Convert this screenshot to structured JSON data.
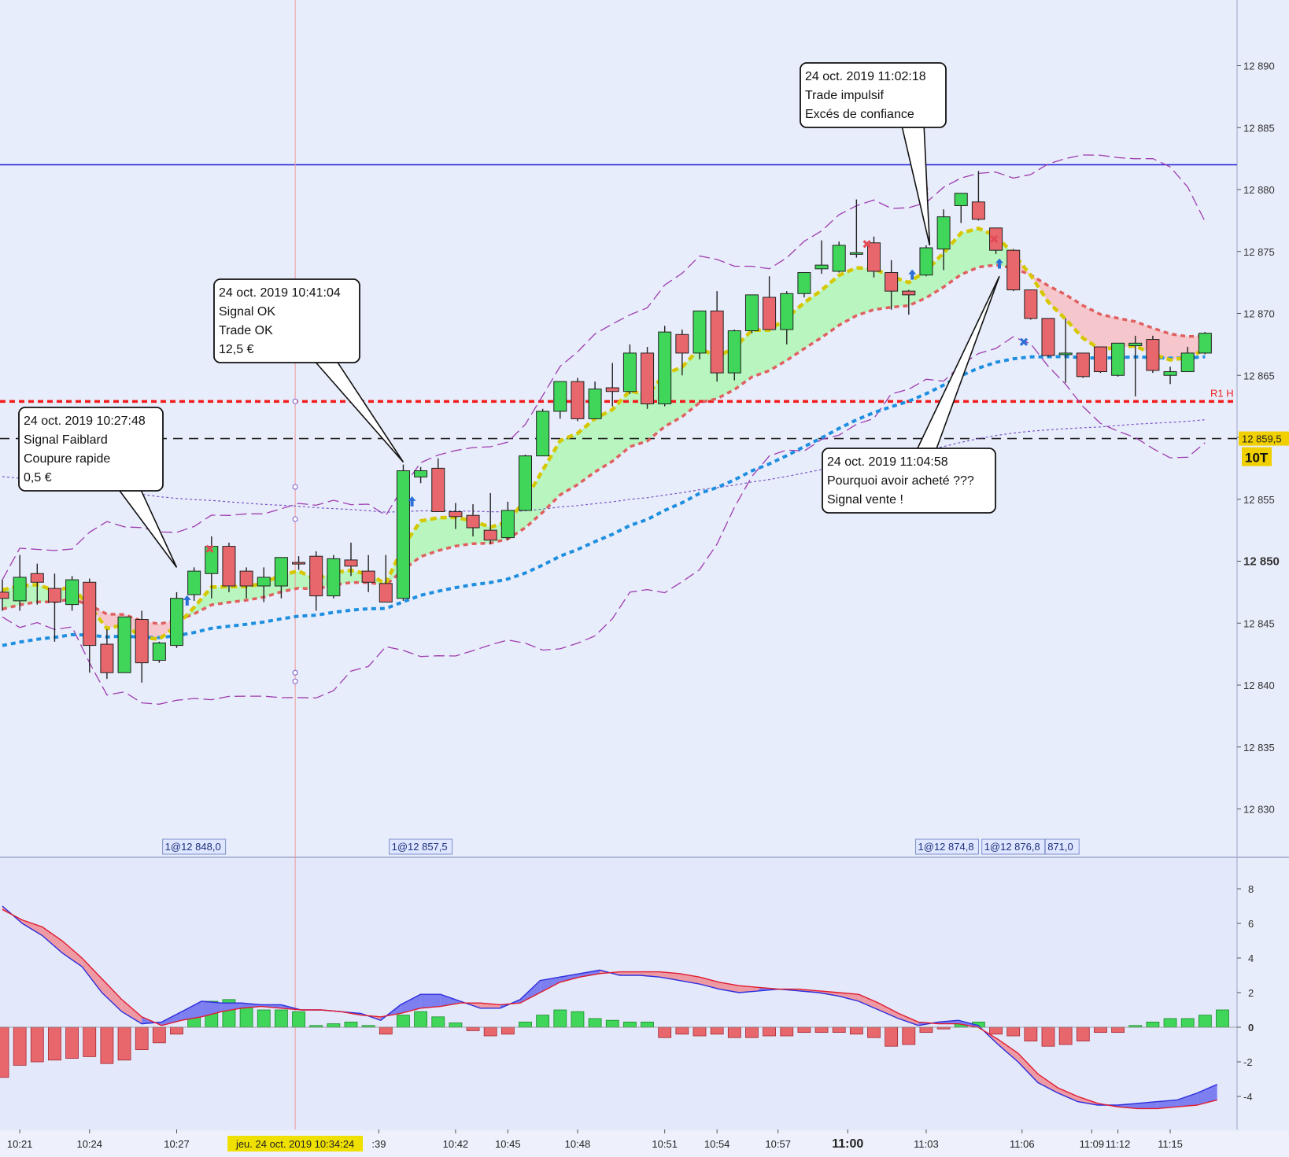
{
  "chart_data": [
    {
      "type": "candlestick",
      "title": "",
      "timeframe": "10T",
      "y_axis": {
        "ticks": [
          12830,
          12835,
          12840,
          12845,
          12850,
          12855,
          12860,
          12865,
          12870,
          12875,
          12880,
          12885,
          12890
        ],
        "tick_labels": [
          "12 830",
          "12 835",
          "12 840",
          "12 845",
          "12 850",
          "12 855",
          "12 860",
          "12 865",
          "12 870",
          "12 875",
          "12 880",
          "12 885",
          "12 890"
        ],
        "bold_tick": "12 850",
        "range": [
          12824,
          12895
        ]
      },
      "x_axis": {
        "labels": [
          {
            "text": "10:21",
            "bar": 1
          },
          {
            "text": "10:24",
            "bar": 5
          },
          {
            "text": "10:27",
            "bar": 10
          },
          {
            "text": ":39",
            "bar": 21.6
          },
          {
            "text": "10:42",
            "bar": 26
          },
          {
            "text": "10:45",
            "bar": 29
          },
          {
            "text": "10:48",
            "bar": 33
          },
          {
            "text": "10:51",
            "bar": 38
          },
          {
            "text": "10:54",
            "bar": 41
          },
          {
            "text": "10:57",
            "bar": 44.5
          },
          {
            "text": "11:00",
            "bar": 48.5,
            "bold": true
          },
          {
            "text": "11:03",
            "bar": 53
          },
          {
            "text": "11:06",
            "bar": 58.5
          },
          {
            "text": "11:09",
            "bar": 62.5
          },
          {
            "text": "11:12",
            "bar": 64
          },
          {
            "text": "11:15",
            "bar": 67
          }
        ],
        "cursor_label": "jeu. 24 oct. 2019 10:34:24"
      },
      "candles": [
        {
          "o": 12847.5,
          "h": 12848.5,
          "l": 12846.0,
          "c": 12847.0
        },
        {
          "o": 12846.8,
          "h": 12850.5,
          "l": 12846.0,
          "c": 12848.7
        },
        {
          "o": 12849.0,
          "h": 12849.8,
          "l": 12846.5,
          "c": 12848.3
        },
        {
          "o": 12847.8,
          "h": 12849.0,
          "l": 12843.5,
          "c": 12846.7
        },
        {
          "o": 12846.5,
          "h": 12848.8,
          "l": 12846.0,
          "c": 12848.5
        },
        {
          "o": 12848.3,
          "h": 12848.6,
          "l": 12841.0,
          "c": 12843.2
        },
        {
          "o": 12843.3,
          "h": 12844.5,
          "l": 12840.5,
          "c": 12841.0
        },
        {
          "o": 12841.0,
          "h": 12845.5,
          "l": 12841.0,
          "c": 12845.5
        },
        {
          "o": 12845.3,
          "h": 12846.0,
          "l": 12840.2,
          "c": 12841.8
        },
        {
          "o": 12842.0,
          "h": 12843.5,
          "l": 12841.8,
          "c": 12843.4
        },
        {
          "o": 12843.2,
          "h": 12847.5,
          "l": 12843.0,
          "c": 12847.0
        },
        {
          "o": 12847.3,
          "h": 12849.5,
          "l": 12846.8,
          "c": 12849.2
        },
        {
          "o": 12849.0,
          "h": 12852.0,
          "l": 12847.0,
          "c": 12851.2
        },
        {
          "o": 12851.2,
          "h": 12851.5,
          "l": 12847.5,
          "c": 12848.0
        },
        {
          "o": 12849.2,
          "h": 12849.5,
          "l": 12847.0,
          "c": 12848.0
        },
        {
          "o": 12848.0,
          "h": 12849.5,
          "l": 12846.7,
          "c": 12848.7
        },
        {
          "o": 12848.0,
          "h": 12850.2,
          "l": 12847.0,
          "c": 12850.3
        },
        {
          "o": 12849.9,
          "h": 12850.4,
          "l": 12849.3,
          "c": 12849.8
        },
        {
          "o": 12850.4,
          "h": 12850.8,
          "l": 12846.0,
          "c": 12847.2
        },
        {
          "o": 12847.2,
          "h": 12850.5,
          "l": 12847.0,
          "c": 12850.2
        },
        {
          "o": 12850.1,
          "h": 12851.5,
          "l": 12848.8,
          "c": 12849.6
        },
        {
          "o": 12849.2,
          "h": 12850.5,
          "l": 12847.5,
          "c": 12848.3
        },
        {
          "o": 12848.2,
          "h": 12850.5,
          "l": 12846.7,
          "c": 12846.7
        },
        {
          "o": 12847.0,
          "h": 12857.8,
          "l": 12846.8,
          "c": 12857.3
        },
        {
          "o": 12856.8,
          "h": 12857.6,
          "l": 12856.3,
          "c": 12857.3
        },
        {
          "o": 12857.5,
          "h": 12858.3,
          "l": 12854.0,
          "c": 12854.0
        },
        {
          "o": 12854.0,
          "h": 12854.7,
          "l": 12852.6,
          "c": 12853.6
        },
        {
          "o": 12853.7,
          "h": 12854.6,
          "l": 12852.0,
          "c": 12852.7
        },
        {
          "o": 12852.5,
          "h": 12855.5,
          "l": 12851.4,
          "c": 12851.7
        },
        {
          "o": 12851.9,
          "h": 12854.8,
          "l": 12851.7,
          "c": 12854.1
        },
        {
          "o": 12854.1,
          "h": 12858.6,
          "l": 12854.1,
          "c": 12858.5
        },
        {
          "o": 12858.5,
          "h": 12862.3,
          "l": 12858.5,
          "c": 12862.1
        },
        {
          "o": 12862.1,
          "h": 12864.5,
          "l": 12861.5,
          "c": 12864.5
        },
        {
          "o": 12864.5,
          "h": 12864.8,
          "l": 12861.3,
          "c": 12861.5
        },
        {
          "o": 12861.5,
          "h": 12864.5,
          "l": 12861.5,
          "c": 12863.9
        },
        {
          "o": 12864.0,
          "h": 12866.0,
          "l": 12862.5,
          "c": 12863.7
        },
        {
          "o": 12863.7,
          "h": 12867.5,
          "l": 12863.5,
          "c": 12866.8
        },
        {
          "o": 12866.8,
          "h": 12867.3,
          "l": 12862.3,
          "c": 12862.7
        },
        {
          "o": 12862.7,
          "h": 12869.0,
          "l": 12862.5,
          "c": 12868.5
        },
        {
          "o": 12868.3,
          "h": 12868.7,
          "l": 12865.0,
          "c": 12866.8
        },
        {
          "o": 12866.8,
          "h": 12870.2,
          "l": 12866.3,
          "c": 12870.2
        },
        {
          "o": 12870.2,
          "h": 12871.8,
          "l": 12864.5,
          "c": 12865.2
        },
        {
          "o": 12865.2,
          "h": 12868.7,
          "l": 12864.6,
          "c": 12868.6
        },
        {
          "o": 12868.6,
          "h": 12871.5,
          "l": 12868.4,
          "c": 12871.5
        },
        {
          "o": 12871.3,
          "h": 12873.0,
          "l": 12868.7,
          "c": 12868.7
        },
        {
          "o": 12868.7,
          "h": 12871.8,
          "l": 12867.5,
          "c": 12871.6
        },
        {
          "o": 12871.6,
          "h": 12873.3,
          "l": 12871.3,
          "c": 12873.3
        },
        {
          "o": 12873.6,
          "h": 12875.9,
          "l": 12873.2,
          "c": 12873.9
        },
        {
          "o": 12873.4,
          "h": 12875.8,
          "l": 12873.3,
          "c": 12875.5
        },
        {
          "o": 12874.9,
          "h": 12879.2,
          "l": 12874.5,
          "c": 12874.9
        },
        {
          "o": 12875.7,
          "h": 12876.2,
          "l": 12872.9,
          "c": 12873.4
        },
        {
          "o": 12873.3,
          "h": 12874.3,
          "l": 12870.3,
          "c": 12871.8
        },
        {
          "o": 12871.8,
          "h": 12871.9,
          "l": 12869.9,
          "c": 12871.5
        },
        {
          "o": 12873.1,
          "h": 12875.5,
          "l": 12873.0,
          "c": 12875.3
        },
        {
          "o": 12875.2,
          "h": 12878.4,
          "l": 12873.5,
          "c": 12877.8
        },
        {
          "o": 12878.7,
          "h": 12879.7,
          "l": 12877.3,
          "c": 12879.7
        },
        {
          "o": 12879.0,
          "h": 12881.5,
          "l": 12877.5,
          "c": 12877.6
        },
        {
          "o": 12876.9,
          "h": 12876.9,
          "l": 12874.8,
          "c": 12875.1
        },
        {
          "o": 12875.1,
          "h": 12875.2,
          "l": 12871.8,
          "c": 12871.9
        },
        {
          "o": 12871.9,
          "h": 12871.9,
          "l": 12869.5,
          "c": 12869.6
        },
        {
          "o": 12869.6,
          "h": 12869.6,
          "l": 12866.5,
          "c": 12866.6
        },
        {
          "o": 12866.7,
          "h": 12869.6,
          "l": 12864.4,
          "c": 12866.8
        },
        {
          "o": 12866.8,
          "h": 12866.8,
          "l": 12864.8,
          "c": 12864.9
        },
        {
          "o": 12867.3,
          "h": 12867.3,
          "l": 12865.2,
          "c": 12865.3
        },
        {
          "o": 12865.0,
          "h": 12867.6,
          "l": 12864.9,
          "c": 12867.6
        },
        {
          "o": 12867.4,
          "h": 12868.2,
          "l": 12863.3,
          "c": 12867.6
        },
        {
          "o": 12867.9,
          "h": 12868.2,
          "l": 12865.2,
          "c": 12865.4
        },
        {
          "o": 12865.0,
          "h": 12865.7,
          "l": 12864.3,
          "c": 12865.3
        },
        {
          "o": 12865.3,
          "h": 12867.3,
          "l": 12865.3,
          "c": 12866.8
        },
        {
          "o": 12866.8,
          "h": 12868.5,
          "l": 12866.7,
          "c": 12868.4
        }
      ],
      "horizontal_levels": [
        {
          "value": 12882.0,
          "style": "solid",
          "color": "#1d1dd6"
        },
        {
          "value": 12862.9,
          "style": "dotted",
          "color": "#f21c1c",
          "label": "R1 H"
        },
        {
          "value": 12859.9,
          "style": "dashed",
          "color": "#222222"
        }
      ],
      "last_price_label": "12 859,5",
      "annotations": [
        {
          "lines": [
            "24 oct. 2019 10:27:48",
            "Signal Faiblard",
            "Coupure rapide",
            "0,5 €"
          ],
          "target_bar": 10,
          "target_price": 12849.5
        },
        {
          "lines": [
            "24 oct. 2019 10:41:04",
            "Signal OK",
            "Trade OK",
            "12,5 €"
          ],
          "target_bar": 23,
          "target_price": 12858.0
        },
        {
          "lines": [
            "24 oct. 2019 11:02:18",
            "Trade impulsif",
            "Excés de confiance"
          ],
          "target_bar": 53.2,
          "target_price": 12875.5
        },
        {
          "lines": [
            "24 oct. 2019 11:04:58",
            "Pourquoi avoir acheté ???",
            "Signal vente !"
          ],
          "target_bar": 57.2,
          "target_price": 12873.0
        }
      ],
      "trade_labels": [
        {
          "text": "1@12 848,0",
          "bar": 11
        },
        {
          "text": "1@12 857,5",
          "bar": 24
        },
        {
          "text": "1@12 874,8",
          "bar": 54.2
        },
        {
          "text": "1@12 876,8",
          "bar": 58
        },
        {
          "text": "871,0",
          "bar": 60.8
        }
      ]
    },
    {
      "type": "histogram",
      "title": "",
      "y_axis": {
        "ticks": [
          8,
          6,
          4,
          2,
          0,
          -2,
          -4
        ],
        "tick_labels": [
          "8",
          "6",
          "4",
          "2",
          "0",
          "-2",
          "-4"
        ],
        "range": [
          -5.8,
          9.5
        ]
      },
      "series": [
        {
          "values": [
            -2.9,
            -2.2,
            -2.0,
            -1.9,
            -1.8,
            -1.7,
            -2.1,
            -1.9,
            -1.3,
            -0.9,
            -0.4,
            0.8,
            1.5,
            1.6,
            1.2,
            1.0,
            1.0,
            0.9,
            0.1,
            0.2,
            0.3,
            0.1,
            -0.4,
            0.7,
            0.9,
            0.6,
            0.25,
            -0.2,
            -0.5,
            -0.4,
            0.3,
            0.7,
            1.0,
            0.9,
            0.5,
            0.4,
            0.3,
            0.3,
            -0.6,
            -0.4,
            -0.5,
            -0.4,
            -0.6,
            -0.6,
            -0.5,
            -0.5,
            -0.3,
            -0.3,
            -0.3,
            -0.4,
            -0.6,
            -1.1,
            -1.0,
            -0.3,
            -0.1,
            0.2,
            0.3,
            -0.4,
            -0.5,
            -0.8,
            -1.1,
            -1.0,
            -0.8,
            -0.3,
            -0.3,
            0.1,
            0.3,
            0.5,
            0.5,
            0.7,
            1.0
          ]
        },
        {
          "values": [
            7.0,
            6.0,
            5.3,
            4.3,
            3.5,
            2.0,
            0.9,
            0.2,
            0.3,
            0.9,
            1.5,
            1.4,
            1.4,
            1.3,
            1.3,
            1.0,
            1.0,
            0.9,
            0.8,
            0.4,
            1.3,
            1.9,
            1.9,
            1.5,
            1.1,
            1.1,
            1.6,
            2.7,
            2.9,
            3.1,
            3.3,
            3.0,
            3.0,
            2.9,
            2.7,
            2.5,
            2.2,
            2.0,
            2.1,
            2.2,
            2.1,
            2.0,
            1.8,
            1.5,
            1.0,
            0.5,
            0.1,
            0.3,
            0.4,
            0.1,
            -1.0,
            -2.0,
            -3.2,
            -3.8,
            -4.3,
            -4.5,
            -4.5,
            -4.4,
            -4.3,
            -4.2,
            -3.8,
            -3.3
          ]
        },
        {
          "values": [
            6.8,
            6.2,
            5.8,
            5.0,
            4.0,
            2.8,
            1.6,
            0.6,
            0.1,
            0.4,
            0.6,
            0.9,
            1.1,
            1.2,
            1.1,
            1.0,
            1.0,
            0.9,
            0.7,
            0.6,
            0.8,
            1.1,
            1.2,
            1.4,
            1.4,
            1.3,
            1.4,
            2.0,
            2.6,
            2.9,
            3.1,
            3.2,
            3.2,
            3.2,
            3.1,
            2.9,
            2.6,
            2.4,
            2.3,
            2.2,
            2.2,
            2.1,
            2.0,
            1.9,
            1.4,
            0.8,
            0.3,
            0.2,
            0.2,
            0.0,
            -0.7,
            -1.5,
            -2.7,
            -3.5,
            -4.0,
            -4.4,
            -4.6,
            -4.7,
            -4.7,
            -4.6,
            -4.5,
            -4.2
          ]
        }
      ]
    }
  ]
}
